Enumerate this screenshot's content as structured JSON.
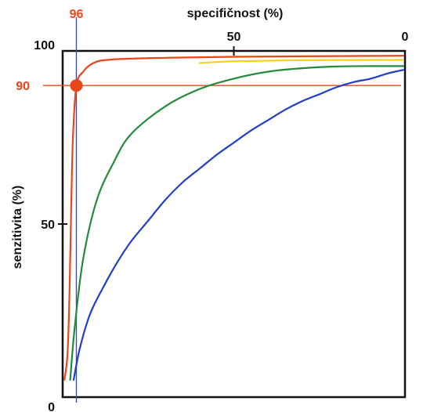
{
  "chart_data": {
    "type": "line",
    "xlabel": "specifičnost (%)",
    "ylabel": "senzitivita (%)",
    "x_axis_position": "top",
    "x_reversed": true,
    "xlim": [
      100,
      0
    ],
    "ylim": [
      0,
      100
    ],
    "x_ticks": [
      {
        "value": 50,
        "label": "50"
      },
      {
        "value": 0,
        "label": "0"
      }
    ],
    "y_ticks": [
      {
        "value": 100,
        "label": "100"
      },
      {
        "value": 50,
        "label": "50"
      },
      {
        "value": 0,
        "label": "0"
      }
    ],
    "grid": false,
    "series": [
      {
        "color": "#e8471c",
        "points": [
          [
            99.5,
            5
          ],
          [
            98.6,
            12
          ],
          [
            98,
            30
          ],
          [
            97.5,
            55
          ],
          [
            97,
            75
          ],
          [
            96,
            90
          ],
          [
            94,
            94
          ],
          [
            91,
            96.5
          ],
          [
            86,
            97.5
          ],
          [
            70,
            98
          ],
          [
            50,
            98.3
          ],
          [
            20,
            98.5
          ],
          [
            0.5,
            98.6
          ]
        ]
      },
      {
        "color": "#f2d21c",
        "points": [
          [
            60,
            96.5
          ],
          [
            50,
            97
          ],
          [
            30,
            97.3
          ],
          [
            10,
            97.4
          ],
          [
            0.5,
            97.4
          ]
        ]
      },
      {
        "color": "#228b3a",
        "points": [
          [
            97.8,
            5
          ],
          [
            96.5,
            20
          ],
          [
            94,
            40
          ],
          [
            90,
            57
          ],
          [
            85,
            68
          ],
          [
            80,
            76
          ],
          [
            70,
            84
          ],
          [
            60,
            89
          ],
          [
            50,
            92
          ],
          [
            40,
            94
          ],
          [
            30,
            95
          ],
          [
            20,
            95.5
          ],
          [
            10,
            95.6
          ],
          [
            0.5,
            95.6
          ]
        ]
      },
      {
        "color": "#1f3fc8",
        "points": [
          [
            96.8,
            5
          ],
          [
            95,
            14
          ],
          [
            92,
            24
          ],
          [
            88,
            32
          ],
          [
            84,
            39
          ],
          [
            80,
            45
          ],
          [
            75,
            51
          ],
          [
            70,
            57
          ],
          [
            65,
            62
          ],
          [
            60,
            66
          ],
          [
            55,
            70
          ],
          [
            50,
            73.5
          ],
          [
            45,
            77
          ],
          [
            40,
            80
          ],
          [
            35,
            83
          ],
          [
            30,
            85.5
          ],
          [
            25,
            87.5
          ],
          [
            20,
            89.5
          ],
          [
            15,
            91
          ],
          [
            10,
            92
          ],
          [
            5,
            93.5
          ],
          [
            0.5,
            94.5
          ]
        ]
      }
    ],
    "marker": {
      "x": 96,
      "y": 90,
      "color": "#e8471c",
      "x_label": "96",
      "y_label": "90"
    },
    "guide_lines": [
      {
        "orientation": "vertical",
        "value": 96,
        "color": "#2a4fd8"
      },
      {
        "orientation": "horizontal",
        "value": 90,
        "color": "#e8471c"
      }
    ]
  }
}
